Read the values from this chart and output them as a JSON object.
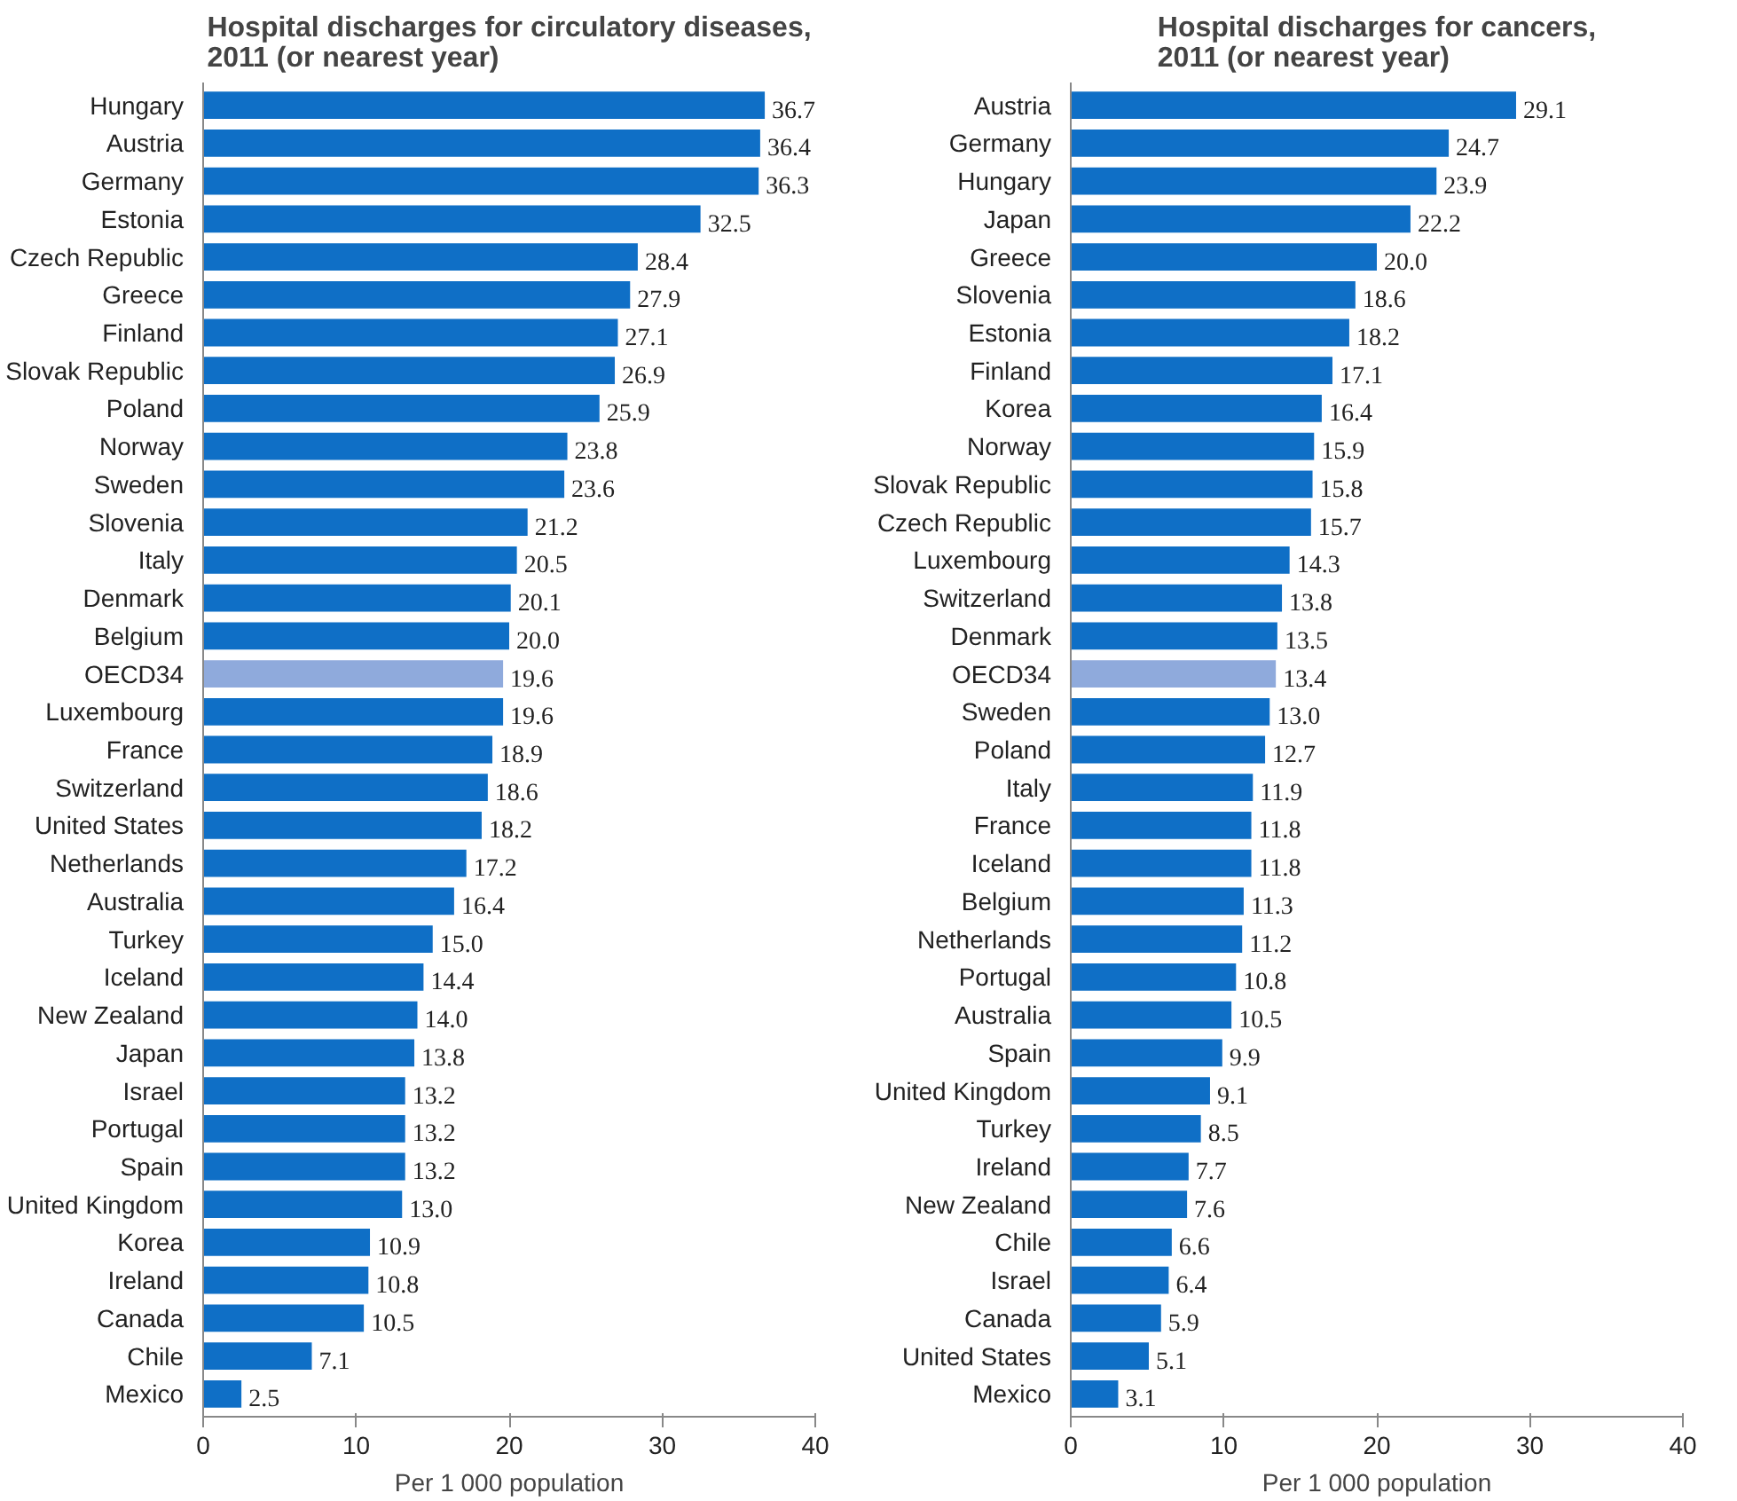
{
  "chart_data": [
    {
      "type": "bar",
      "orientation": "horizontal",
      "title": "Hospital discharges for circulatory diseases,\n2011 (or nearest year)",
      "xlabel": "Per 1 000 population",
      "categories": [
        "Hungary",
        "Austria",
        "Germany",
        "Estonia",
        "Czech Republic",
        "Greece",
        "Finland",
        "Slovak Republic",
        "Poland",
        "Norway",
        "Sweden",
        "Slovenia",
        "Italy",
        "Denmark",
        "Belgium",
        "OECD34",
        "Luxembourg",
        "France",
        "Switzerland",
        "United States",
        "Netherlands",
        "Australia",
        "Turkey",
        "Iceland",
        "New Zealand",
        "Japan",
        "Israel",
        "Portugal",
        "Spain",
        "United Kingdom",
        "Korea",
        "Ireland",
        "Canada",
        "Chile",
        "Mexico"
      ],
      "values": [
        36.7,
        36.4,
        36.3,
        32.5,
        28.4,
        27.9,
        27.1,
        26.9,
        25.9,
        23.8,
        23.6,
        21.2,
        20.5,
        20.1,
        20.0,
        19.6,
        19.6,
        18.9,
        18.6,
        18.2,
        17.2,
        16.4,
        15.0,
        14.4,
        14.0,
        13.8,
        13.2,
        13.2,
        13.2,
        13.0,
        10.9,
        10.8,
        10.5,
        7.1,
        2.5
      ],
      "colors": [
        "#0f6fc6",
        "#0f6fc6",
        "#0f6fc6",
        "#0f6fc6",
        "#0f6fc6",
        "#0f6fc6",
        "#0f6fc6",
        "#0f6fc6",
        "#0f6fc6",
        "#0f6fc6",
        "#0f6fc6",
        "#0f6fc6",
        "#0f6fc6",
        "#0f6fc6",
        "#0f6fc6",
        "#8faadc",
        "#0f6fc6",
        "#0f6fc6",
        "#0f6fc6",
        "#0f6fc6",
        "#0f6fc6",
        "#0f6fc6",
        "#0f6fc6",
        "#0f6fc6",
        "#0f6fc6",
        "#0f6fc6",
        "#0f6fc6",
        "#0f6fc6",
        "#0f6fc6",
        "#0f6fc6",
        "#0f6fc6",
        "#0f6fc6",
        "#0f6fc6",
        "#0f6fc6",
        "#0f6fc6"
      ],
      "value_labels": [
        "36.7",
        "36.4",
        "36.3",
        "32.5",
        "28.4",
        "27.9",
        "27.1",
        "26.9",
        "25.9",
        "23.8",
        "23.6",
        "21.2",
        "20.5",
        "20.1",
        "20.0",
        "19.6",
        "19.6",
        "18.9",
        "18.6",
        "18.2",
        "17.2",
        "16.4",
        "15.0",
        "14.4",
        "14.0",
        "13.8",
        "13.2",
        "13.2",
        "13.2",
        "13.0",
        "10.9",
        "10.8",
        "10.5",
        "7.1",
        "2.5"
      ],
      "xlim": [
        0,
        40
      ],
      "xticks": [
        0,
        10,
        20,
        30,
        40
      ],
      "grid": false
    },
    {
      "type": "bar",
      "orientation": "horizontal",
      "title": "Hospital discharges for cancers,\n2011 (or nearest year)",
      "xlabel": "Per 1 000 population",
      "categories": [
        "Austria",
        "Germany",
        "Hungary",
        "Japan",
        "Greece",
        "Slovenia",
        "Estonia",
        "Finland",
        "Korea",
        "Norway",
        "Slovak Republic",
        "Czech Republic",
        "Luxembourg",
        "Switzerland",
        "Denmark",
        "OECD34",
        "Sweden",
        "Poland",
        "Italy",
        "France",
        "Iceland",
        "Belgium",
        "Netherlands",
        "Portugal",
        "Australia",
        "Spain",
        "United Kingdom",
        "Turkey",
        "Ireland",
        "New Zealand",
        "Chile",
        "Israel",
        "Canada",
        "United States",
        "Mexico"
      ],
      "values": [
        29.1,
        24.7,
        23.9,
        22.2,
        20.0,
        18.6,
        18.2,
        17.1,
        16.4,
        15.9,
        15.8,
        15.7,
        14.3,
        13.8,
        13.5,
        13.4,
        13.0,
        12.7,
        11.9,
        11.8,
        11.8,
        11.3,
        11.2,
        10.8,
        10.5,
        9.9,
        9.1,
        8.5,
        7.7,
        7.6,
        6.6,
        6.4,
        5.9,
        5.1,
        3.1
      ],
      "colors": [
        "#0f6fc6",
        "#0f6fc6",
        "#0f6fc6",
        "#0f6fc6",
        "#0f6fc6",
        "#0f6fc6",
        "#0f6fc6",
        "#0f6fc6",
        "#0f6fc6",
        "#0f6fc6",
        "#0f6fc6",
        "#0f6fc6",
        "#0f6fc6",
        "#0f6fc6",
        "#0f6fc6",
        "#8faadc",
        "#0f6fc6",
        "#0f6fc6",
        "#0f6fc6",
        "#0f6fc6",
        "#0f6fc6",
        "#0f6fc6",
        "#0f6fc6",
        "#0f6fc6",
        "#0f6fc6",
        "#0f6fc6",
        "#0f6fc6",
        "#0f6fc6",
        "#0f6fc6",
        "#0f6fc6",
        "#0f6fc6",
        "#0f6fc6",
        "#0f6fc6",
        "#0f6fc6",
        "#0f6fc6"
      ],
      "value_labels": [
        "29.1",
        "24.7",
        "23.9",
        "22.2",
        "20.0",
        "18.6",
        "18.2",
        "17.1",
        "16.4",
        "15.9",
        "15.8",
        "15.7",
        "14.3",
        "13.8",
        "13.5",
        "13.4",
        "13.0",
        "12.7",
        "11.9",
        "11.8",
        "11.8",
        "11.3",
        "11.2",
        "10.8",
        "10.5",
        "9.9",
        "9.1",
        "8.5",
        "7.7",
        "7.6",
        "6.6",
        "6.4",
        "5.9",
        "5.1",
        "3.1"
      ],
      "xlim": [
        0,
        40
      ],
      "xticks": [
        0,
        10,
        20,
        30,
        40
      ],
      "grid": false
    }
  ]
}
